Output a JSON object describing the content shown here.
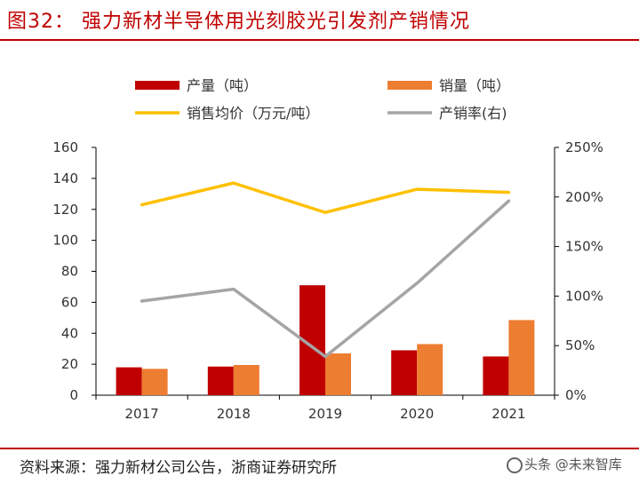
{
  "figure_title": "图32： 强力新材半导体用光刻胶光引发剂产销情况",
  "source": "资料来源：强力新材公司公告，浙商证券研究所",
  "watermark": {
    "text": "头条 @未来智库"
  },
  "colors": {
    "production": "#c00000",
    "sales": "#ed7d31",
    "avg_price": "#ffc000",
    "ratio": "#a5a5a5",
    "title_red": "#c00000",
    "axis": "#000000",
    "text": "#333333"
  },
  "chart_data": {
    "type": "bar",
    "title": "图32： 强力新材半导体用光刻胶光引发剂产销情况",
    "categories": [
      "2017",
      "2018",
      "2019",
      "2020",
      "2021"
    ],
    "legend_position": "top",
    "grid": false,
    "y_left": {
      "min": 0,
      "max": 160,
      "ticks": [
        0,
        20,
        40,
        60,
        80,
        100,
        120,
        140,
        160
      ]
    },
    "y_right": {
      "min": 0,
      "max": 2.5,
      "ticks": [
        "0%",
        "50%",
        "100%",
        "150%",
        "200%",
        "250%"
      ]
    },
    "series": [
      {
        "name": "产量（吨）",
        "type": "bar",
        "axis": "left",
        "values": [
          18,
          18.5,
          71,
          29,
          25
        ]
      },
      {
        "name": "销量（吨）",
        "type": "bar",
        "axis": "left",
        "values": [
          17,
          19.5,
          27,
          33,
          48.5
        ]
      },
      {
        "name": "销售均价（万元/吨）",
        "type": "line",
        "axis": "left",
        "values": [
          123,
          137,
          118,
          133,
          131
        ]
      },
      {
        "name": "产销率(右)",
        "type": "line",
        "axis": "right",
        "values": [
          0.95,
          1.07,
          0.39,
          1.13,
          1.96
        ]
      }
    ]
  }
}
